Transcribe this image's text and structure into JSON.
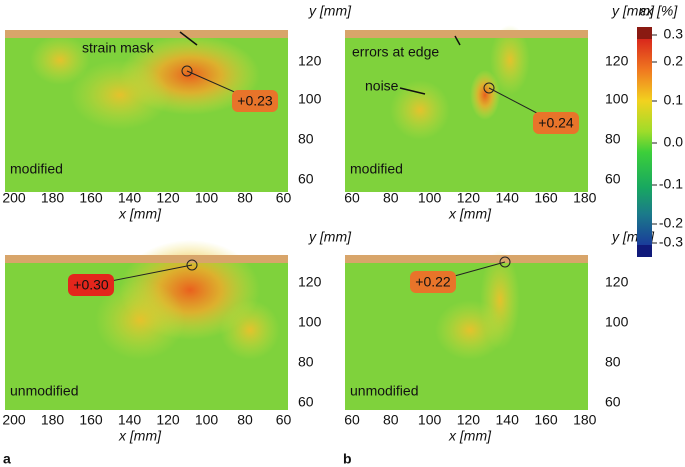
{
  "panels": [
    {
      "state": "modified",
      "x_label": "x [mm]",
      "y_label": "y [mm]",
      "x_ticks": [
        "200",
        "180",
        "160",
        "140",
        "120",
        "100",
        "80",
        "60"
      ],
      "y_ticks": [
        "120",
        "100",
        "80",
        "60"
      ],
      "annotations": [
        "strain mask"
      ],
      "peak": "+0.23"
    },
    {
      "state": "modified",
      "x_label": "x [mm]",
      "y_label": "y [mm]",
      "x_ticks": [
        "60",
        "80",
        "100",
        "120",
        "140",
        "160",
        "180"
      ],
      "y_ticks": [
        "120",
        "100",
        "80",
        "60"
      ],
      "annotations": [
        "errors at edge",
        "noise"
      ],
      "peak": "+0.24"
    },
    {
      "state": "unmodified",
      "x_label": "x [mm]",
      "y_label": "y [mm]",
      "x_ticks": [
        "200",
        "180",
        "160",
        "140",
        "120",
        "100",
        "80",
        "60"
      ],
      "y_ticks": [
        "120",
        "100",
        "80",
        "60"
      ],
      "annotations": [],
      "peak": "+0.30"
    },
    {
      "state": "unmodified",
      "x_label": "x [mm]",
      "y_label": "y [mm]",
      "x_ticks": [
        "60",
        "80",
        "100",
        "120",
        "140",
        "160",
        "180"
      ],
      "y_ticks": [
        "120",
        "100",
        "80",
        "60"
      ],
      "annotations": [],
      "peak": "+0.22"
    }
  ],
  "figure_labels": [
    "a",
    "b"
  ],
  "colorbar": {
    "title": "εx [%]",
    "ticks": [
      "0.3",
      "0.2",
      "0.1",
      "0.0",
      "-0.1",
      "-0.2",
      "-0.3"
    ]
  }
}
